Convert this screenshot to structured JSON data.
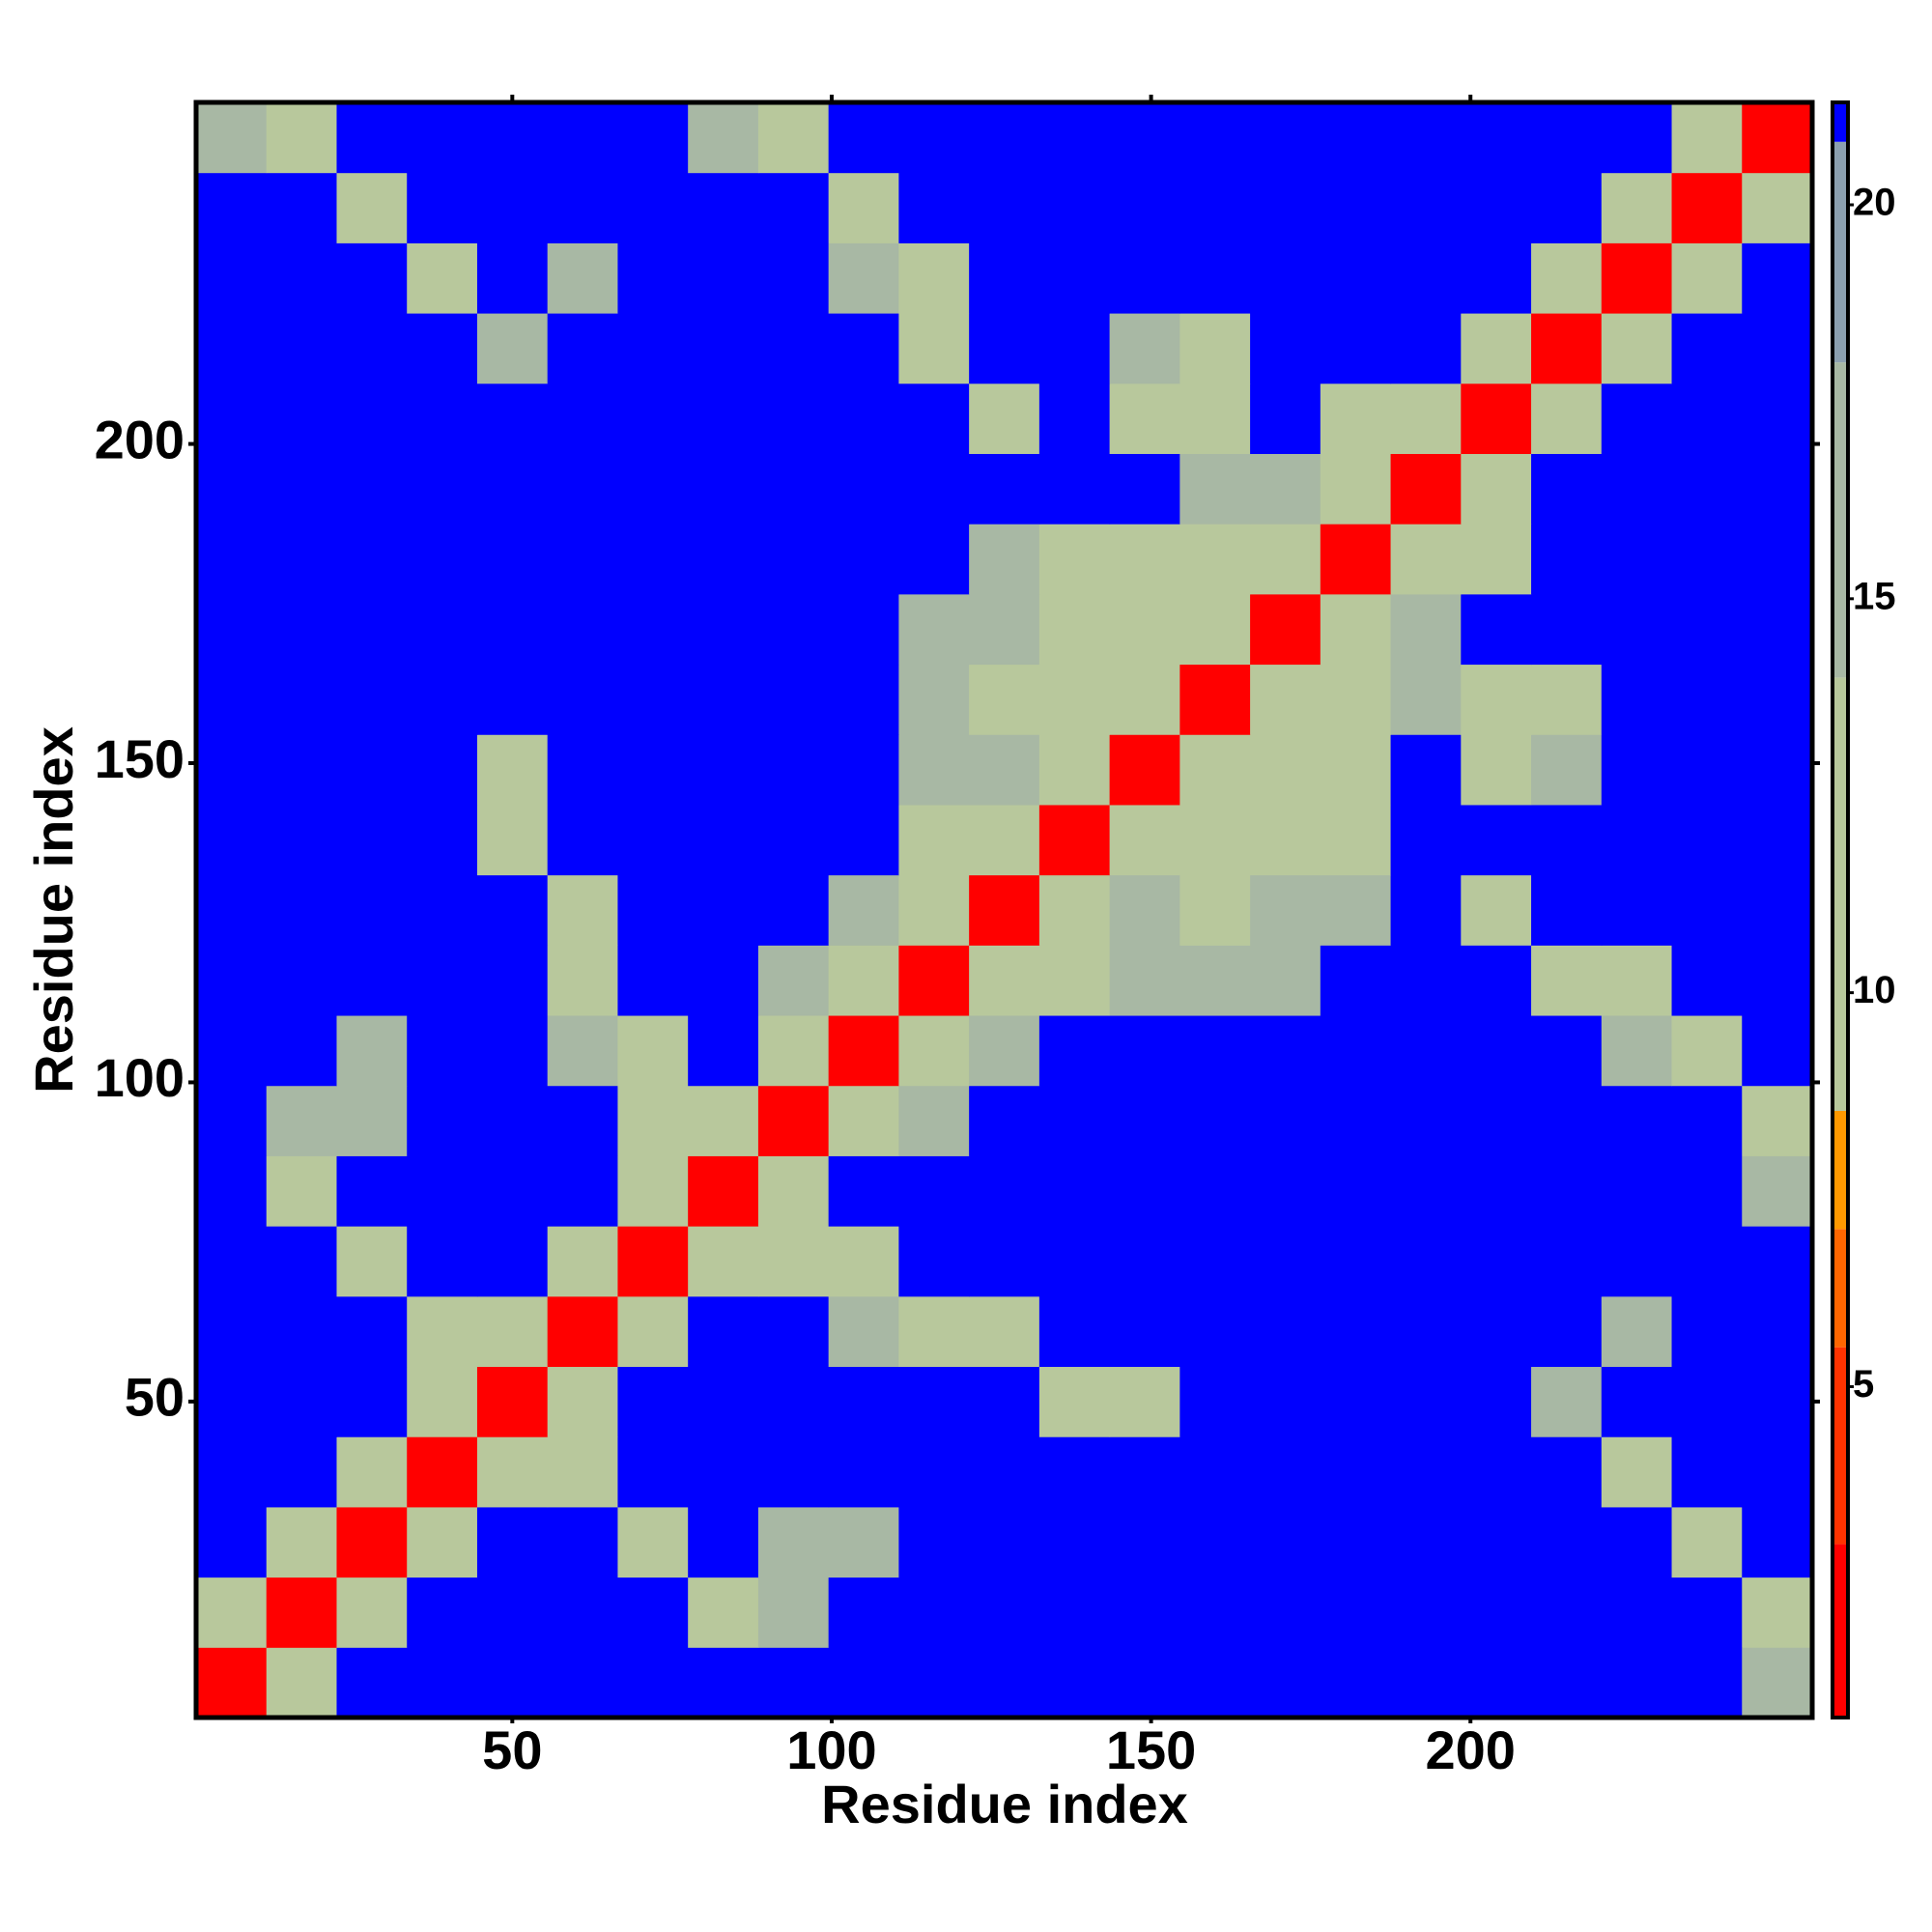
{
  "chart_data": {
    "type": "heatmap",
    "x_label": "Residue index",
    "y_label": "Residue index",
    "x": [
      6,
      17,
      28,
      39,
      50,
      61,
      72,
      83,
      94,
      105,
      116,
      127,
      138,
      149,
      160,
      171,
      182,
      193,
      204,
      215,
      226,
      237,
      248
    ],
    "y": [
      6,
      17,
      28,
      39,
      50,
      61,
      72,
      83,
      94,
      105,
      116,
      127,
      138,
      149,
      160,
      171,
      182,
      193,
      204,
      215,
      226,
      237,
      248
    ],
    "z": [
      [
        2,
        13,
        21,
        21,
        21,
        21,
        21,
        21,
        21,
        21,
        21,
        21,
        21,
        21,
        21,
        21,
        21,
        21,
        21,
        21,
        21,
        21,
        14
      ],
      [
        13,
        2,
        13,
        21,
        21,
        21,
        21,
        11,
        17,
        21,
        21,
        21,
        21,
        21,
        21,
        21,
        21,
        21,
        21,
        21,
        21,
        21,
        11
      ],
      [
        21,
        13,
        2,
        13,
        21,
        21,
        10,
        21,
        16,
        17,
        21,
        21,
        21,
        21,
        21,
        21,
        21,
        21,
        21,
        21,
        21,
        11,
        21
      ],
      [
        21,
        21,
        13,
        2,
        9,
        10,
        21,
        21,
        21,
        21,
        21,
        21,
        21,
        21,
        21,
        21,
        21,
        21,
        21,
        21,
        13,
        21,
        21
      ],
      [
        21,
        21,
        21,
        9,
        2,
        13,
        21,
        21,
        21,
        21,
        21,
        21,
        12,
        12,
        21,
        21,
        21,
        21,
        21,
        16,
        21,
        21,
        21
      ],
      [
        21,
        21,
        21,
        10,
        13,
        2,
        13,
        21,
        21,
        15,
        10,
        12,
        21,
        21,
        21,
        21,
        21,
        21,
        21,
        21,
        17,
        21,
        21
      ],
      [
        21,
        21,
        10,
        21,
        21,
        13,
        2,
        9,
        10,
        12,
        21,
        21,
        21,
        21,
        21,
        21,
        21,
        21,
        21,
        21,
        21,
        21,
        21
      ],
      [
        21,
        11,
        21,
        21,
        21,
        21,
        9,
        2,
        13,
        21,
        21,
        21,
        21,
        21,
        21,
        21,
        21,
        21,
        21,
        21,
        21,
        21,
        15
      ],
      [
        21,
        17,
        16,
        21,
        21,
        21,
        10,
        13,
        2,
        13,
        16,
        21,
        21,
        21,
        21,
        21,
        21,
        21,
        21,
        21,
        21,
        21,
        11
      ],
      [
        21,
        21,
        17,
        21,
        21,
        15,
        12,
        21,
        13,
        2,
        13,
        16,
        21,
        21,
        21,
        21,
        21,
        21,
        21,
        21,
        14,
        11,
        21
      ],
      [
        21,
        21,
        21,
        21,
        21,
        10,
        21,
        21,
        16,
        13,
        2,
        13,
        13,
        15,
        15,
        16,
        21,
        21,
        21,
        11,
        13,
        21,
        21
      ],
      [
        21,
        21,
        21,
        21,
        21,
        12,
        21,
        21,
        21,
        16,
        13,
        2,
        13,
        14,
        13,
        14,
        14,
        21,
        12,
        21,
        21,
        21,
        21
      ],
      [
        21,
        21,
        21,
        21,
        12,
        21,
        21,
        21,
        21,
        21,
        13,
        13,
        2,
        13,
        12,
        12,
        13,
        21,
        21,
        21,
        21,
        21,
        21
      ],
      [
        21,
        21,
        21,
        21,
        12,
        21,
        21,
        21,
        21,
        21,
        15,
        14,
        13,
        2,
        13,
        13,
        12,
        21,
        13,
        16,
        21,
        21,
        21
      ],
      [
        21,
        21,
        21,
        21,
        21,
        21,
        21,
        21,
        21,
        21,
        15,
        13,
        12,
        13,
        2,
        13,
        13,
        15,
        10,
        12,
        21,
        21,
        21
      ],
      [
        21,
        21,
        21,
        21,
        21,
        21,
        21,
        21,
        21,
        21,
        16,
        14,
        12,
        13,
        13,
        2,
        13,
        14,
        21,
        21,
        21,
        21,
        21
      ],
      [
        21,
        21,
        21,
        21,
        21,
        21,
        21,
        21,
        21,
        21,
        21,
        14,
        13,
        12,
        13,
        13,
        2,
        10,
        13,
        21,
        21,
        21,
        21
      ],
      [
        21,
        21,
        21,
        21,
        21,
        21,
        21,
        21,
        21,
        21,
        21,
        21,
        21,
        21,
        15,
        14,
        10,
        2,
        10,
        21,
        21,
        21,
        21
      ],
      [
        21,
        21,
        21,
        21,
        21,
        21,
        21,
        21,
        21,
        21,
        21,
        12,
        21,
        13,
        10,
        21,
        13,
        10,
        2,
        13,
        21,
        21,
        21
      ],
      [
        21,
        21,
        21,
        21,
        16,
        21,
        21,
        21,
        21,
        21,
        11,
        21,
        21,
        16,
        12,
        21,
        21,
        21,
        13,
        2,
        13,
        21,
        21
      ],
      [
        21,
        21,
        21,
        13,
        21,
        17,
        21,
        21,
        21,
        14,
        13,
        21,
        21,
        21,
        21,
        21,
        21,
        21,
        21,
        13,
        2,
        13,
        21
      ],
      [
        21,
        21,
        11,
        21,
        21,
        21,
        21,
        21,
        21,
        11,
        21,
        21,
        21,
        21,
        21,
        21,
        21,
        21,
        21,
        21,
        13,
        2,
        13
      ],
      [
        14,
        11,
        21,
        21,
        21,
        21,
        21,
        15,
        11,
        21,
        21,
        21,
        21,
        21,
        21,
        21,
        21,
        21,
        21,
        21,
        21,
        13,
        2
      ]
    ],
    "xlim": [
      0.5,
      253.5
    ],
    "ylim": [
      0.5,
      253.5
    ],
    "xticks": [
      50,
      100,
      150,
      200
    ],
    "yticks": [
      50,
      100,
      150,
      200
    ],
    "clim": [
      0.8,
      21.3
    ],
    "cticks": [
      5,
      10,
      15,
      20
    ],
    "colorscale": [
      {
        "value": 0.8,
        "color": "#ff0000"
      },
      {
        "value": 3,
        "color": "#ff3300"
      },
      {
        "value": 5.5,
        "color": "#ff6600"
      },
      {
        "value": 7,
        "color": "#ff9900"
      },
      {
        "value": 8.5,
        "color": "#b8c89c"
      },
      {
        "value": 14,
        "color": "#a8b8a4"
      },
      {
        "value": 18,
        "color": "#8ca0b0"
      },
      {
        "value": 20.8,
        "color": "#0000ff"
      }
    ]
  }
}
